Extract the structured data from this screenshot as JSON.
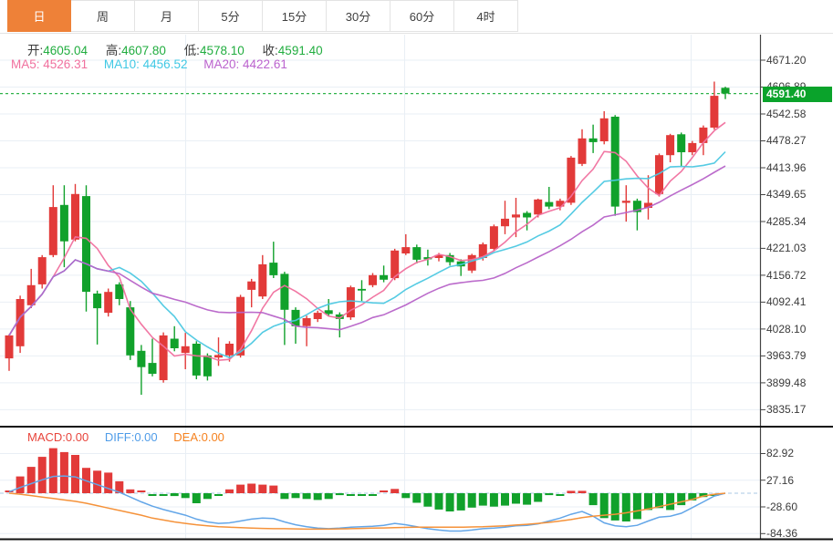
{
  "toolbar": {
    "tabs": [
      {
        "label": "日",
        "active": true
      },
      {
        "label": "周",
        "active": false
      },
      {
        "label": "月",
        "active": false
      },
      {
        "label": "5分",
        "active": false
      },
      {
        "label": "15分",
        "active": false
      },
      {
        "label": "30分",
        "active": false
      },
      {
        "label": "60分",
        "active": false
      },
      {
        "label": "4时",
        "active": false
      }
    ]
  },
  "ohlc_bar": {
    "open_label": "开:",
    "open": "4605.04",
    "high_label": "高:",
    "high": "4607.80",
    "low_label": "低:",
    "low": "4578.10",
    "close_label": "收:",
    "close": "4591.40"
  },
  "ma_legend": {
    "ma5_label": "MA5:",
    "ma5_value": "4526.31",
    "ma10_label": "MA10:",
    "ma10_value": "4456.52",
    "ma20_label": "MA20:",
    "ma20_value": "4422.61"
  },
  "macd_panel": {
    "macd_label": "MACD:",
    "macd_value": "0.00",
    "diff_label": "DIFF:",
    "diff_value": "0.00",
    "dea_label": "DEA:",
    "dea_value": "0.00"
  },
  "price_axis": {
    "current_price": "4591.40"
  },
  "colors": {
    "up": "#e23a39",
    "down": "#11a12b",
    "ma5": "#f0709e",
    "ma10": "#4cc8e2",
    "ma20": "#b763c8",
    "diff_line": "#63a6e8",
    "dea_line": "#f5923a",
    "current_line": "#2fb34a",
    "badge": "#0aa32b",
    "grid": "#e9eff5",
    "axis_line": "#444444",
    "separator": "#111111",
    "zero_line": "#a9c9e6",
    "accent_orange": "#ee8138"
  },
  "chart_data": {
    "type": "candlestick",
    "panes": [
      "price",
      "macd"
    ],
    "price_yticks": [
      4671.2,
      4606.89,
      4542.58,
      4478.27,
      4413.96,
      4349.65,
      4285.34,
      4221.03,
      4156.72,
      4092.41,
      4028.1,
      3963.79,
      3899.48,
      3835.17
    ],
    "current_price": 4591.4,
    "latest": {
      "open": 4605.04,
      "high": 4607.8,
      "low": 4578.1,
      "close": 4591.4
    },
    "ma": {
      "periods": [
        5,
        10,
        20
      ],
      "ma5_current": 4526.31,
      "ma10_current": 4456.52,
      "ma20_current": 4422.61
    },
    "candles": [
      [
        3958,
        4016,
        3928,
        4013
      ],
      [
        3987,
        4108,
        3971,
        4100
      ],
      [
        4085,
        4172,
        4078,
        4133
      ],
      [
        4135,
        4205,
        4125,
        4200
      ],
      [
        4205,
        4372,
        4200,
        4320
      ],
      [
        4325,
        4372,
        4176,
        4238
      ],
      [
        4242,
        4375,
        4238,
        4351
      ],
      [
        4346,
        4372,
        4070,
        4117
      ],
      [
        4113,
        4120,
        3991,
        4078
      ],
      [
        4067,
        4125,
        4058,
        4117
      ],
      [
        4135,
        4140,
        4085,
        4100
      ],
      [
        4080,
        4095,
        3954,
        3965
      ],
      [
        3976,
        3990,
        3871,
        3937
      ],
      [
        3947,
        4005,
        3915,
        3921
      ],
      [
        3906,
        4020,
        3900,
        4013
      ],
      [
        4005,
        4035,
        3975,
        3982
      ],
      [
        3971,
        4019,
        3932,
        3987
      ],
      [
        3993,
        3999,
        3908,
        3917
      ],
      [
        3965,
        3970,
        3905,
        3915
      ],
      [
        3960,
        4008,
        3940,
        3966
      ],
      [
        3965,
        3999,
        3950,
        3993
      ],
      [
        3965,
        4110,
        3960,
        4105
      ],
      [
        4122,
        4148,
        4080,
        4142
      ],
      [
        4106,
        4205,
        4100,
        4183
      ],
      [
        4187,
        4237,
        4150,
        4157
      ],
      [
        4160,
        4165,
        3990,
        4074
      ],
      [
        4074,
        4080,
        3993,
        4035
      ],
      [
        4035,
        4060,
        3987,
        4054
      ],
      [
        4052,
        4072,
        4045,
        4067
      ],
      [
        4073,
        4100,
        4058,
        4064
      ],
      [
        4063,
        4068,
        4008,
        4052
      ],
      [
        4056,
        4132,
        4050,
        4128
      ],
      [
        4124,
        4145,
        4095,
        4120
      ],
      [
        4133,
        4162,
        4128,
        4157
      ],
      [
        4157,
        4180,
        4140,
        4146
      ],
      [
        4150,
        4220,
        4145,
        4216
      ],
      [
        4209,
        4255,
        4205,
        4224
      ],
      [
        4224,
        4230,
        4185,
        4194
      ],
      [
        4200,
        4218,
        4180,
        4195
      ],
      [
        4198,
        4210,
        4190,
        4205
      ],
      [
        4205,
        4210,
        4180,
        4188
      ],
      [
        4190,
        4195,
        4155,
        4178
      ],
      [
        4168,
        4208,
        4162,
        4205
      ],
      [
        4198,
        4235,
        4192,
        4231
      ],
      [
        4220,
        4278,
        4215,
        4274
      ],
      [
        4274,
        4335,
        4255,
        4292
      ],
      [
        4295,
        4342,
        4248,
        4302
      ],
      [
        4306,
        4310,
        4264,
        4295
      ],
      [
        4302,
        4340,
        4295,
        4338
      ],
      [
        4332,
        4368,
        4315,
        4321
      ],
      [
        4321,
        4340,
        4312,
        4335
      ],
      [
        4330,
        4442,
        4325,
        4438
      ],
      [
        4423,
        4506,
        4418,
        4484
      ],
      [
        4484,
        4517,
        4449,
        4475
      ],
      [
        4477,
        4549,
        4470,
        4532
      ],
      [
        4536,
        4540,
        4299,
        4321
      ],
      [
        4330,
        4372,
        4285,
        4335
      ],
      [
        4335,
        4340,
        4264,
        4308
      ],
      [
        4318,
        4396,
        4290,
        4330
      ],
      [
        4351,
        4448,
        4345,
        4444
      ],
      [
        4444,
        4495,
        4427,
        4492
      ],
      [
        4494,
        4498,
        4418,
        4451
      ],
      [
        4451,
        4478,
        4444,
        4473
      ],
      [
        4473,
        4515,
        4444,
        4510
      ],
      [
        4510,
        4620,
        4505,
        4586
      ],
      [
        4605.04,
        4607.8,
        4578.1,
        4591.4
      ]
    ],
    "macd": {
      "yticks": [
        82.92,
        27.16,
        -28.6,
        -84.36
      ],
      "current": {
        "macd": 0.0,
        "diff": 0.0,
        "dea": 0.0
      },
      "hist": [
        3,
        35,
        55,
        76,
        94,
        86,
        80,
        53,
        47,
        43,
        25,
        8,
        2,
        -2,
        -3,
        -6,
        -10,
        -21,
        -12,
        -3,
        8,
        18,
        20,
        18,
        16,
        -12,
        -10,
        -12,
        -14,
        -12,
        -4,
        -2,
        -1,
        -1,
        1,
        9,
        -10,
        -20,
        -28,
        -34,
        -38,
        -36,
        -30,
        -26,
        -28,
        -26,
        -22,
        -24,
        -18,
        -4,
        -3,
        5,
        5,
        -25,
        -52,
        -57,
        -59,
        -54,
        -35,
        -31,
        -35,
        -25,
        -15,
        -8,
        -2,
        0
      ],
      "diff": [
        3,
        12,
        20,
        28,
        35,
        36,
        34,
        26,
        18,
        10,
        2,
        -8,
        -18,
        -27,
        -34,
        -40,
        -46,
        -54,
        -60,
        -63,
        -62,
        -58,
        -54,
        -52,
        -53,
        -60,
        -66,
        -70,
        -73,
        -74,
        -73,
        -71,
        -70,
        -69,
        -67,
        -63,
        -66,
        -70,
        -74,
        -77,
        -79,
        -79,
        -77,
        -74,
        -73,
        -71,
        -68,
        -67,
        -64,
        -58,
        -52,
        -44,
        -38,
        -48,
        -62,
        -68,
        -70,
        -67,
        -58,
        -50,
        -48,
        -42,
        -30,
        -18,
        -6,
        0
      ],
      "dea": [
        0,
        -2,
        -5,
        -8,
        -11,
        -14,
        -17,
        -21,
        -26,
        -31,
        -36,
        -41,
        -46,
        -52,
        -56,
        -60,
        -63,
        -66,
        -68,
        -70,
        -71,
        -72,
        -73,
        -73.5,
        -74,
        -74,
        -74.5,
        -75,
        -75,
        -75,
        -74.5,
        -74,
        -73.5,
        -73,
        -72.5,
        -72,
        -71.5,
        -71,
        -71,
        -71,
        -71,
        -71,
        -70.5,
        -70,
        -69,
        -68,
        -66.5,
        -65,
        -63,
        -61,
        -58,
        -55,
        -51,
        -48,
        -46,
        -44,
        -41,
        -37,
        -33,
        -28,
        -23,
        -18,
        -13,
        -6,
        -2,
        0
      ]
    }
  }
}
